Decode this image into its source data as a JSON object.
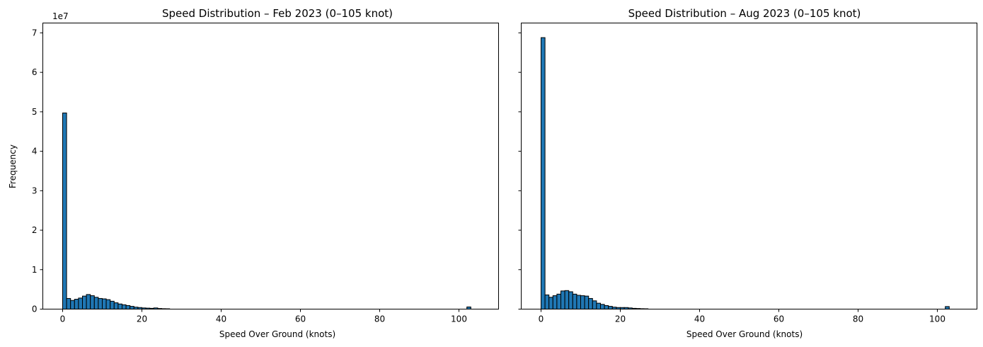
{
  "chart_data": [
    {
      "type": "bar",
      "title": "Speed Distribution – Feb 2023 (0–105 knot)",
      "xlabel": "Speed Over Ground (knots)",
      "ylabel": "Frequency",
      "y_offset_label": "1e7",
      "bin_width": 1,
      "xlim": [
        -5,
        110
      ],
      "ylim": [
        0,
        7.25
      ],
      "xticks": [
        0,
        20,
        40,
        60,
        80,
        100
      ],
      "yticks": [
        0,
        1,
        2,
        3,
        4,
        5,
        6,
        7
      ],
      "ytick_labels_visible": true,
      "bar_color": "#1f77b4",
      "bins": [
        {
          "x": 0,
          "y": 4.97
        },
        {
          "x": 1,
          "y": 0.27
        },
        {
          "x": 2,
          "y": 0.22
        },
        {
          "x": 3,
          "y": 0.25
        },
        {
          "x": 4,
          "y": 0.28
        },
        {
          "x": 5,
          "y": 0.33
        },
        {
          "x": 6,
          "y": 0.37
        },
        {
          "x": 7,
          "y": 0.34
        },
        {
          "x": 8,
          "y": 0.3
        },
        {
          "x": 9,
          "y": 0.27
        },
        {
          "x": 10,
          "y": 0.26
        },
        {
          "x": 11,
          "y": 0.24
        },
        {
          "x": 12,
          "y": 0.2
        },
        {
          "x": 13,
          "y": 0.16
        },
        {
          "x": 14,
          "y": 0.13
        },
        {
          "x": 15,
          "y": 0.11
        },
        {
          "x": 16,
          "y": 0.09
        },
        {
          "x": 17,
          "y": 0.07
        },
        {
          "x": 18,
          "y": 0.05
        },
        {
          "x": 19,
          "y": 0.04
        },
        {
          "x": 20,
          "y": 0.03
        },
        {
          "x": 21,
          "y": 0.025
        },
        {
          "x": 22,
          "y": 0.02
        },
        {
          "x": 23,
          "y": 0.03
        },
        {
          "x": 24,
          "y": 0.015
        },
        {
          "x": 25,
          "y": 0.01
        },
        {
          "x": 26,
          "y": 0.008
        },
        {
          "x": 102,
          "y": 0.055
        }
      ]
    },
    {
      "type": "bar",
      "title": "Speed Distribution – Aug 2023 (0–105 knot)",
      "xlabel": "Speed Over Ground (knots)",
      "ylabel": "",
      "y_offset_label": "",
      "bin_width": 1,
      "xlim": [
        -5,
        110
      ],
      "ylim": [
        0,
        7.25
      ],
      "xticks": [
        0,
        20,
        40,
        60,
        80,
        100
      ],
      "yticks": [
        0,
        1,
        2,
        3,
        4,
        5,
        6,
        7
      ],
      "ytick_labels_visible": false,
      "bar_color": "#1f77b4",
      "bins": [
        {
          "x": 0,
          "y": 6.88
        },
        {
          "x": 1,
          "y": 0.36
        },
        {
          "x": 2,
          "y": 0.3
        },
        {
          "x": 3,
          "y": 0.34
        },
        {
          "x": 4,
          "y": 0.38
        },
        {
          "x": 5,
          "y": 0.46
        },
        {
          "x": 6,
          "y": 0.47
        },
        {
          "x": 7,
          "y": 0.44
        },
        {
          "x": 8,
          "y": 0.38
        },
        {
          "x": 9,
          "y": 0.35
        },
        {
          "x": 10,
          "y": 0.34
        },
        {
          "x": 11,
          "y": 0.33
        },
        {
          "x": 12,
          "y": 0.27
        },
        {
          "x": 13,
          "y": 0.21
        },
        {
          "x": 14,
          "y": 0.15
        },
        {
          "x": 15,
          "y": 0.12
        },
        {
          "x": 16,
          "y": 0.09
        },
        {
          "x": 17,
          "y": 0.07
        },
        {
          "x": 18,
          "y": 0.05
        },
        {
          "x": 19,
          "y": 0.04
        },
        {
          "x": 20,
          "y": 0.04
        },
        {
          "x": 21,
          "y": 0.04
        },
        {
          "x": 22,
          "y": 0.03
        },
        {
          "x": 23,
          "y": 0.02
        },
        {
          "x": 24,
          "y": 0.015
        },
        {
          "x": 25,
          "y": 0.01
        },
        {
          "x": 26,
          "y": 0.008
        },
        {
          "x": 102,
          "y": 0.065
        }
      ]
    }
  ]
}
